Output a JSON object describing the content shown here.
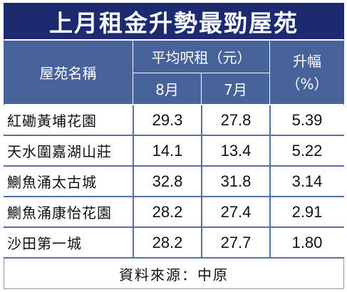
{
  "title": "上月租金升勢最勁屋苑",
  "header": {
    "estate_col": "屋苑名稱",
    "rent_group": "平均呎租（元）",
    "month_aug": "8月",
    "month_jul": "7月",
    "rise_label": "升幅",
    "rise_unit": "（%）"
  },
  "rows": [
    {
      "name": "紅磡黃埔花園",
      "aug": "29.3",
      "jul": "27.8",
      "rise": "5.39"
    },
    {
      "name": "天水圍嘉湖山莊",
      "aug": "14.1",
      "jul": "13.4",
      "rise": "5.22"
    },
    {
      "name": "鰂魚涌太古城",
      "aug": "32.8",
      "jul": "31.8",
      "rise": "3.14"
    },
    {
      "name": "鰂魚涌康怡花園",
      "aug": "28.2",
      "jul": "27.4",
      "rise": "2.91"
    },
    {
      "name": "沙田第一城",
      "aug": "28.2",
      "jul": "27.7",
      "rise": "1.80"
    }
  ],
  "source": "資料來源：中原"
}
